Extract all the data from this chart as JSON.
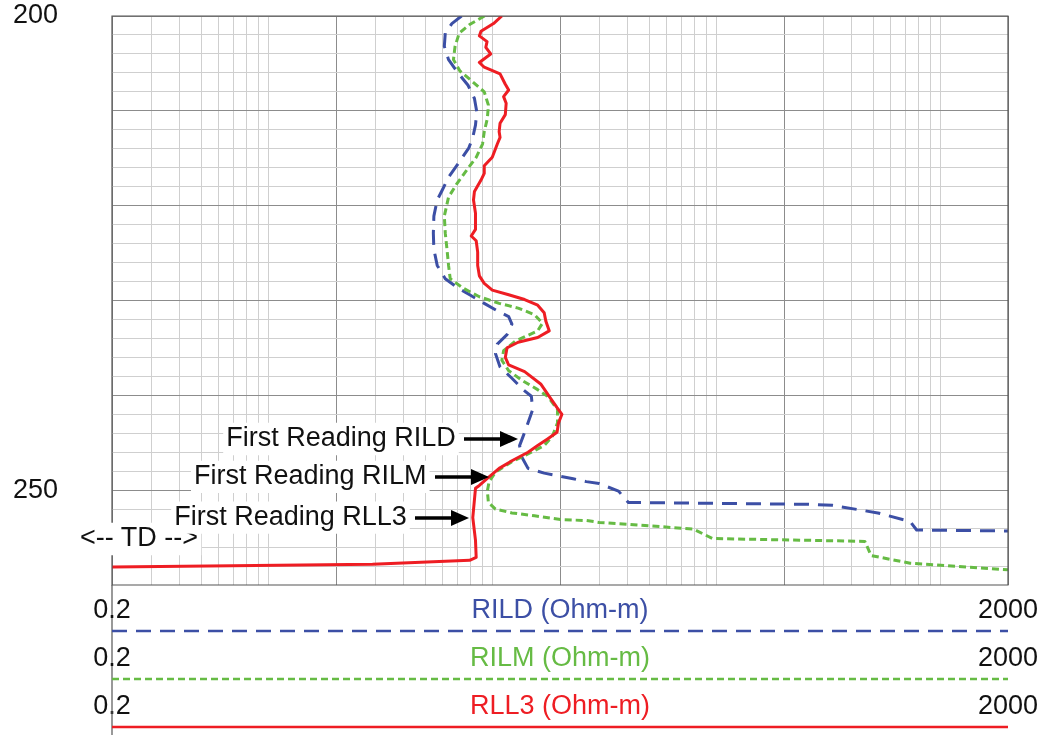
{
  "chart_data": {
    "type": "line",
    "log": "x",
    "grid": true,
    "legend": "bottom",
    "xlim": [
      0.2,
      2000
    ],
    "xticks": [
      0.2,
      {
        "value": 0.3,
        "label": null
      },
      {
        "value": 0.4,
        "label": null
      },
      {
        "value": 0.5,
        "label": null
      },
      {
        "value": 0.6,
        "label": null
      },
      {
        "value": 0.7,
        "label": null
      },
      {
        "value": 0.8,
        "label": null
      },
      {
        "value": 0.9,
        "label": null
      },
      {
        "value": 1,
        "label": null
      },
      {
        "value": 2,
        "label": null
      },
      {
        "value": 3,
        "label": null
      },
      {
        "value": 4,
        "label": null
      },
      {
        "value": 5,
        "label": null
      },
      {
        "value": 6,
        "label": null
      },
      {
        "value": 7,
        "label": null
      },
      {
        "value": 8,
        "label": null
      },
      {
        "value": 9,
        "label": null
      },
      {
        "value": 10,
        "label": null
      },
      {
        "value": 20,
        "label": null
      },
      {
        "value": 30,
        "label": null
      },
      {
        "value": 40,
        "label": null
      },
      {
        "value": 50,
        "label": null
      },
      {
        "value": 60,
        "label": null
      },
      {
        "value": 70,
        "label": null
      },
      {
        "value": 80,
        "label": null
      },
      {
        "value": 90,
        "label": null
      },
      {
        "value": 100,
        "label": null
      },
      {
        "value": 200,
        "label": null
      },
      {
        "value": 300,
        "label": null
      },
      {
        "value": 400,
        "label": null
      },
      {
        "value": 500,
        "label": null
      },
      {
        "value": 600,
        "label": null
      },
      {
        "value": 700,
        "label": null
      },
      {
        "value": 800,
        "label": null
      },
      {
        "value": 900,
        "label": null
      },
      {
        "value": 1000,
        "label": null
      },
      2000
    ],
    "x2lim": [
      0.2,
      2000
    ],
    "x2ticks": [
      0.2,
      2000
    ],
    "ylim": [
      260,
      200
    ],
    "yticks": [
      200,
      {
        "value": 202,
        "label": null
      },
      {
        "value": 204,
        "label": null
      },
      {
        "value": 206,
        "label": null
      },
      {
        "value": 208,
        "label": null
      },
      {
        "value": 210,
        "label": null
      },
      {
        "value": 212,
        "label": null
      },
      {
        "value": 214,
        "label": null
      },
      {
        "value": 216,
        "label": null
      },
      {
        "value": 218,
        "label": null
      },
      {
        "value": 220,
        "label": null
      },
      {
        "value": 222,
        "label": null
      },
      {
        "value": 224,
        "label": null
      },
      {
        "value": 226,
        "label": null
      },
      {
        "value": 228,
        "label": null
      },
      {
        "value": 230,
        "label": null
      },
      {
        "value": 232,
        "label": null
      },
      {
        "value": 234,
        "label": null
      },
      {
        "value": 236,
        "label": null
      },
      {
        "value": 238,
        "label": null
      },
      {
        "value": 240,
        "label": null
      },
      {
        "value": 242,
        "label": null
      },
      {
        "value": 244,
        "label": null
      },
      {
        "value": 246,
        "label": null
      },
      {
        "value": 248,
        "label": null
      },
      250,
      {
        "value": 252,
        "label": null
      },
      {
        "value": 254,
        "label": null
      },
      {
        "value": 256,
        "label": null
      },
      {
        "value": 258,
        "label": null
      }
    ],
    "annotations": [
      "<-- TD -->",
      "0.2",
      "2000",
      {
        "text": "First Reading RILD",
        "x": 13.5,
        "y": 244.6
      },
      {
        "text": "First Reading RILM",
        "x": 10.0,
        "y": 248.6
      },
      {
        "text": "First Reading RLL3",
        "x": 8.16,
        "y": 252.9
      }
    ],
    "series": [
      {
        "name": "RILD (Ohm-m)",
        "color": "#3c4fa5",
        "line_style": "dashed",
        "x": [
          7.27,
          6.58,
          6.15,
          6.09,
          6.36,
          6.96,
          7.77,
          8.3,
          8.5,
          8.39,
          8.16,
          7.84,
          7.1,
          6.36,
          5.95,
          5.66,
          5.47,
          5.44,
          5.47,
          5.66,
          6.15,
          6.92,
          7.9,
          9.18,
          10.7,
          11.8,
          12.2,
          11.6,
          10.5,
          10.3,
          10.8,
          12.2,
          13.7,
          14.9,
          15.1,
          14.4,
          13.7,
          13.2,
          13.5,
          14.4,
          17.0,
          22.9,
          26.2,
          29.9,
          36.5,
          40.4,
          269,
          329,
          525,
          731,
          782,
          2000
        ],
        "values": [
          200,
          200.8,
          201.8,
          203.2,
          204.6,
          205.9,
          207.3,
          208.7,
          210.1,
          211.5,
          212.8,
          213.9,
          215.4,
          217.0,
          218.4,
          219.4,
          221.1,
          222.9,
          224.6,
          226.3,
          227.7,
          228.6,
          229.4,
          230.3,
          231.2,
          231.7,
          232.5,
          233.6,
          234.6,
          235.6,
          237.0,
          238.2,
          239.4,
          240.1,
          241.5,
          242.9,
          244.3,
          245.3,
          246.5,
          247.7,
          248.2,
          248.8,
          249.1,
          249.3,
          250.1,
          251.3,
          251.5,
          251.6,
          252.4,
          253.3,
          254.2,
          254.3
        ]
      },
      {
        "name": "RILM (Ohm-m)",
        "color": "#66bb44",
        "line_style": "dotted",
        "x": [
          9.2,
          7.9,
          7.1,
          6.8,
          6.69,
          7.15,
          8.03,
          9.18,
          9.58,
          9.48,
          9.18,
          9.02,
          8.45,
          7.64,
          6.92,
          6.36,
          6.09,
          6.15,
          6.26,
          6.36,
          6.47,
          7.39,
          8.73,
          10.7,
          13.0,
          15.4,
          16.7,
          15.9,
          12.6,
          11.2,
          11.0,
          11.8,
          13.5,
          15.9,
          17.6,
          19.5,
          19.5,
          18.5,
          17.0,
          14.9,
          12.2,
          10.3,
          9.65,
          9.48,
          9.58,
          10.3,
          12.2,
          15.4,
          20.1,
          26.2,
          29.9,
          40.4,
          78.6,
          96.0,
          459,
          490,
          731,
          2000
        ],
        "values": [
          200,
          200.9,
          201.8,
          203.2,
          204.6,
          205.8,
          206.8,
          208.0,
          209.4,
          210.8,
          212.2,
          213.5,
          214.9,
          216.3,
          217.7,
          219.1,
          221.1,
          222.9,
          224.6,
          226.3,
          227.7,
          228.7,
          229.6,
          230.3,
          230.8,
          231.5,
          232.4,
          233.2,
          234.3,
          235.3,
          236.3,
          237.4,
          238.4,
          239.4,
          240.1,
          241.5,
          242.9,
          244.3,
          245.3,
          246.0,
          247.0,
          248.1,
          249.1,
          250.1,
          251.3,
          252.0,
          252.4,
          252.7,
          253.1,
          253.2,
          253.4,
          253.6,
          254.1,
          255.1,
          255.4,
          256.9,
          257.7,
          258.4
        ]
      },
      {
        "name": "RLL3 (Ohm-m)",
        "color": "#ee1d23",
        "line_style": "solid",
        "x": [
          11.0,
          10.1,
          8.88,
          8.73,
          9.45,
          9.33,
          9.81,
          8.73,
          9.18,
          10.8,
          11.4,
          11.8,
          11.2,
          11.5,
          11.4,
          10.8,
          10.7,
          10.8,
          10.5,
          9.97,
          9.18,
          9.18,
          8.88,
          8.3,
          8.22,
          8.39,
          8.39,
          8.03,
          8.45,
          8.58,
          8.58,
          8.73,
          9.18,
          9.97,
          11.8,
          13.9,
          15.9,
          17.0,
          17.3,
          17.9,
          15.9,
          13.0,
          11.6,
          11.4,
          11.8,
          13.9,
          16.4,
          17.9,
          19.4,
          20.4,
          19.7,
          19.4,
          17.6,
          15.9,
          14.4,
          12.2,
          10.7,
          9.65,
          8.73,
          8.39,
          8.16,
          8.39,
          8.45,
          7.9,
          2.91,
          0.2
        ],
        "values": [
          200,
          200.8,
          201.6,
          202.1,
          202.7,
          203.3,
          204.0,
          204.9,
          205.4,
          206.1,
          207.2,
          207.8,
          208.5,
          209.2,
          210.4,
          211.3,
          212.2,
          212.8,
          213.5,
          214.9,
          215.8,
          216.6,
          217.3,
          218.5,
          219.4,
          220.8,
          222.5,
          223.2,
          223.7,
          224.9,
          226.3,
          227.4,
          228.2,
          228.9,
          229.4,
          229.9,
          230.5,
          231.3,
          232.2,
          233.2,
          233.9,
          234.4,
          235.0,
          236.0,
          236.8,
          237.5,
          238.8,
          240.1,
          241.3,
          242.0,
          242.9,
          243.9,
          244.6,
          245.3,
          246.0,
          246.9,
          247.7,
          248.6,
          249.5,
          249.8,
          252.9,
          255.3,
          257.1,
          257.4,
          257.8,
          258.1
        ]
      }
    ]
  }
}
